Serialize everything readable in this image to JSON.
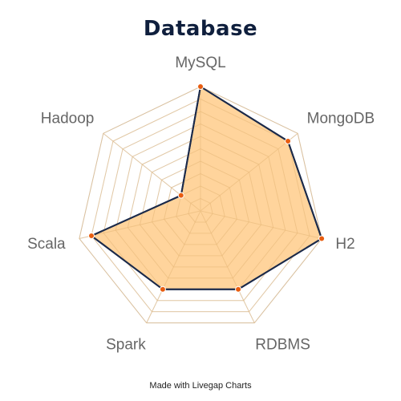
{
  "chart_data": {
    "type": "radar",
    "title": "Database",
    "categories": [
      "MySQL",
      "MongoDB",
      "H2",
      "RDBMS",
      "Spark",
      "Scala",
      "Hadoop"
    ],
    "series": [
      {
        "values": [
          10,
          9,
          10,
          7,
          7,
          9,
          2
        ]
      }
    ],
    "range": [
      0,
      10
    ],
    "grid_levels": 10,
    "grid": true,
    "legend": "none"
  },
  "footer": "Made with Livegap Charts",
  "colors": {
    "title": "#0f1f3d",
    "fill": "#ffcf91",
    "stroke": "#1b2a4a",
    "point": "#e85d10",
    "grid": "#dddddd",
    "outer_grid": "#cccccc",
    "label": "#666666"
  }
}
